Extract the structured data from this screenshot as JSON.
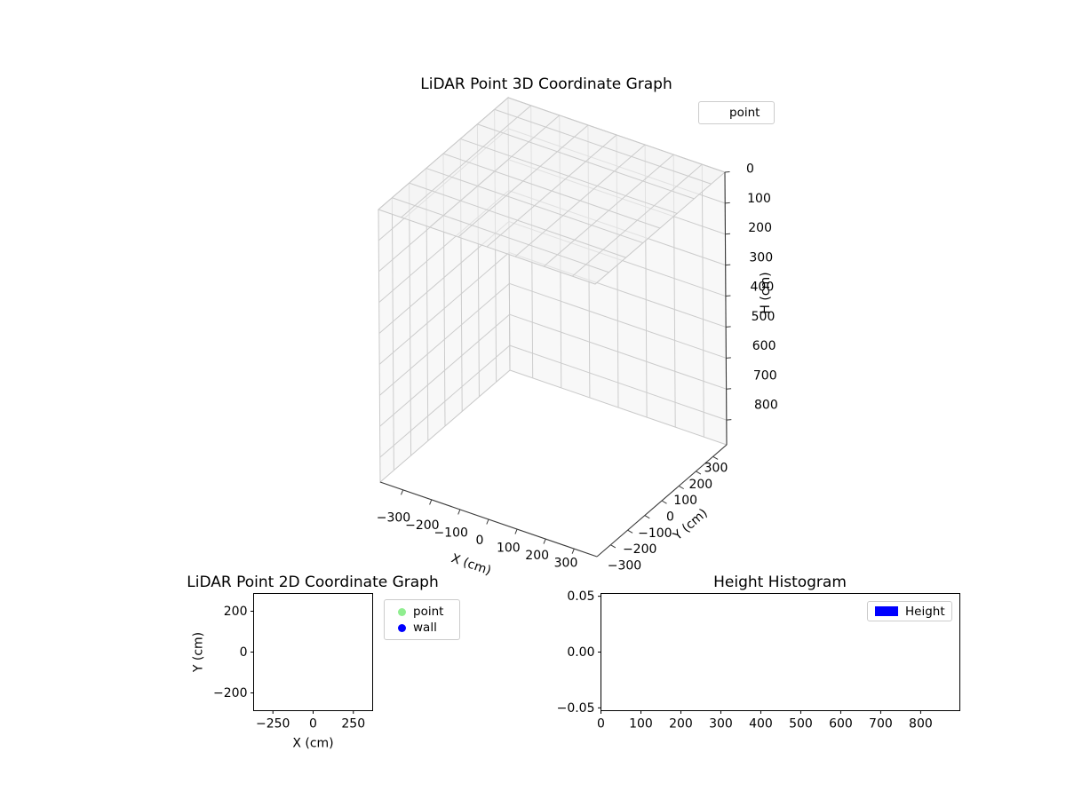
{
  "style": {
    "background": "#ffffff",
    "text_color": "#000000",
    "spine_color": "#000000",
    "axis3d_line_color": "#3a3a3a",
    "grid3d_color": "#cccccc",
    "pane_color": "#f2f2f2",
    "pane_edge_color": "#c9c9c9",
    "legend_border_color": "#cccccc",
    "point_color": "#90EE90",
    "wall_color": "#0000FF",
    "height_color": "#0000FF"
  },
  "chart_data": [
    {
      "id": "plot3d",
      "type": "scatter",
      "projection": "3d",
      "title": "LiDAR Point 3D Coordinate Graph",
      "xlabel": "X (cm)",
      "ylabel": "Y (cm)",
      "zlabel": "H (cm)",
      "xlim": [
        -380,
        380
      ],
      "ylim": [
        -380,
        380
      ],
      "zlim": [
        0,
        880
      ],
      "zaxis_inverted": true,
      "xticks": [
        -300,
        -200,
        -100,
        0,
        100,
        200,
        300
      ],
      "yticks": [
        -300,
        -200,
        -100,
        0,
        100,
        200,
        300
      ],
      "zticks": [
        0,
        100,
        200,
        300,
        400,
        500,
        600,
        700,
        800
      ],
      "view": {
        "elev": 30,
        "azim": -60
      },
      "grid": true,
      "legend": [
        {
          "label": "point",
          "handle": "empty"
        }
      ],
      "legend_position": "upper right",
      "series": [
        {
          "name": "point",
          "points": []
        }
      ]
    },
    {
      "id": "plot2d",
      "type": "scatter",
      "title": "LiDAR Point 2D Coordinate Graph",
      "xlabel": "X (cm)",
      "ylabel": "Y (cm)",
      "xlim": [
        -370,
        370
      ],
      "ylim": [
        -287,
        287
      ],
      "xticks": [
        -250,
        0,
        250
      ],
      "yticks": [
        -200,
        0,
        200
      ],
      "grid": false,
      "legend": [
        {
          "label": "point",
          "color": "#90EE90",
          "marker": "circle"
        },
        {
          "label": "wall",
          "color": "#0000FF",
          "marker": "circle"
        }
      ],
      "legend_position": "outside upper right",
      "series": [
        {
          "name": "point",
          "points": []
        },
        {
          "name": "wall",
          "points": []
        }
      ]
    },
    {
      "id": "histogram",
      "type": "bar",
      "title": "Height Histogram",
      "xlabel": "",
      "ylabel": "",
      "xlim": [
        0,
        898
      ],
      "ylim": [
        -0.0525,
        0.0525
      ],
      "xticks": [
        0,
        100,
        200,
        300,
        400,
        500,
        600,
        700,
        800
      ],
      "yticks": [
        -0.05,
        0.0,
        0.05
      ],
      "ytick_labels": [
        "-0.05",
        "0.00",
        "0.05"
      ],
      "grid": false,
      "legend": [
        {
          "label": "Height",
          "color": "#0000FF",
          "marker": "patch"
        }
      ],
      "legend_position": "upper right",
      "values": []
    }
  ]
}
